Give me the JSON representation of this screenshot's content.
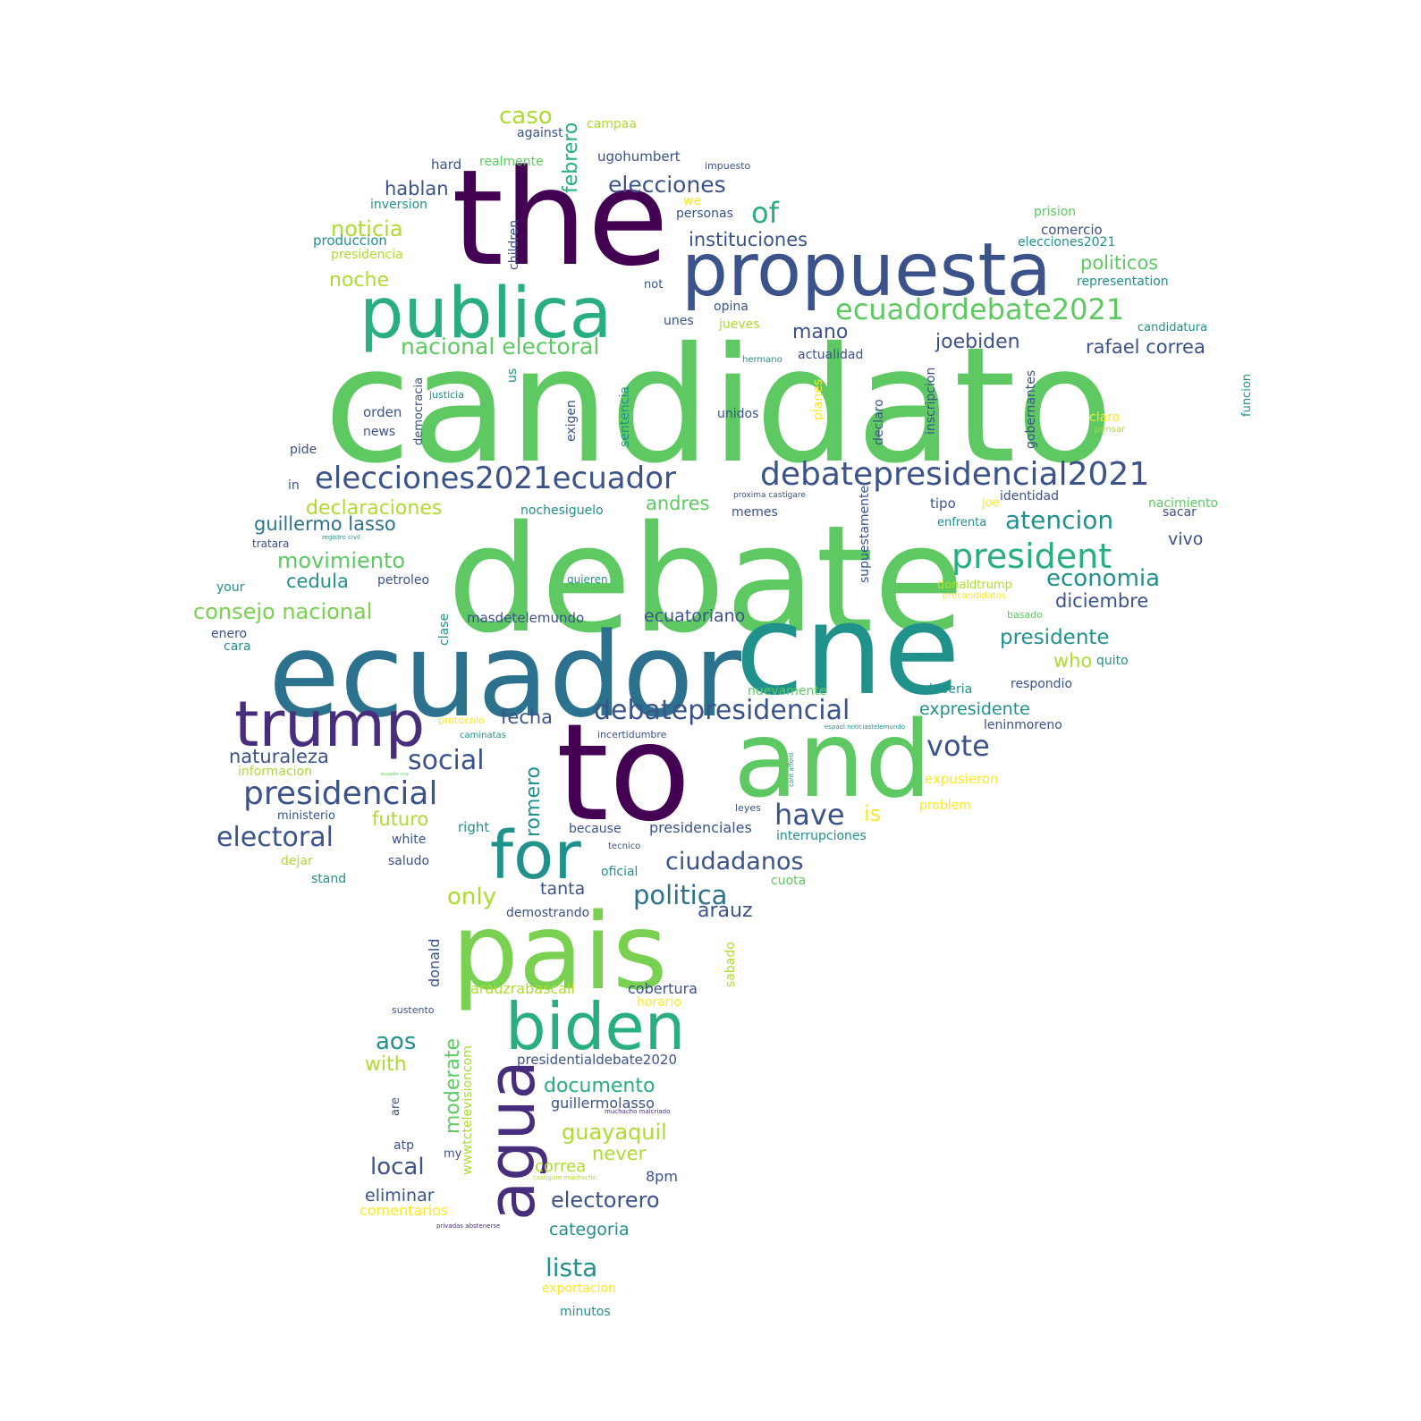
{
  "palette": {
    "viridis_dark": "#440154",
    "viridis_purple": "#472d7b",
    "viridis_indigo": "#3b528b",
    "viridis_blue": "#2c728e",
    "viridis_teal": "#21918c",
    "viridis_green": "#28ae80",
    "viridis_mint": "#5ec962",
    "viridis_lime": "#addc30",
    "viridis_yellow": "#fde725"
  },
  "words": [
    {
      "text": "candidato",
      "color": "#5ec962"
    },
    {
      "text": "debate",
      "color": "#5ec962"
    },
    {
      "text": "ecuador",
      "color": "#2c728e"
    },
    {
      "text": "the",
      "color": "#440154"
    },
    {
      "text": "cne",
      "color": "#21918c"
    },
    {
      "text": "to",
      "color": "#440154"
    },
    {
      "text": "and",
      "color": "#5ec962"
    },
    {
      "text": "propuesta",
      "color": "#3b528b"
    },
    {
      "text": "publica",
      "color": "#28ae80"
    },
    {
      "text": "pais",
      "color": "#7ad151"
    },
    {
      "text": "trump",
      "color": "#472d7b"
    },
    {
      "text": "biden",
      "color": "#28ae80"
    },
    {
      "text": "for",
      "color": "#21918c"
    },
    {
      "text": "agua",
      "color": "#472d7b"
    },
    {
      "text": "elecciones2021ecuador",
      "color": "#3b528b"
    },
    {
      "text": "debatepresidencial2021",
      "color": "#3b528b"
    },
    {
      "text": "ecuadordebate2021",
      "color": "#5ec962"
    },
    {
      "text": "president",
      "color": "#28ae80"
    },
    {
      "text": "presidencial",
      "color": "#3b528b"
    },
    {
      "text": "debatepresidencial",
      "color": "#3b528b"
    },
    {
      "text": "elecciones",
      "color": "#3b528b"
    },
    {
      "text": "of",
      "color": "#28ae80"
    },
    {
      "text": "nacional electoral",
      "color": "#5ec962"
    },
    {
      "text": "joebiden",
      "color": "#3b528b"
    },
    {
      "text": "atencion",
      "color": "#21918c"
    },
    {
      "text": "economia",
      "color": "#21918c"
    },
    {
      "text": "vote",
      "color": "#3b528b"
    },
    {
      "text": "social",
      "color": "#3b528b"
    },
    {
      "text": "electoral",
      "color": "#3b528b"
    },
    {
      "text": "have",
      "color": "#3b528b"
    },
    {
      "text": "ciudadanos",
      "color": "#3b528b"
    },
    {
      "text": "politica",
      "color": "#2c728e"
    },
    {
      "text": "consejo nacional",
      "color": "#7ad151"
    },
    {
      "text": "movimiento",
      "color": "#5ec962"
    },
    {
      "text": "instituciones",
      "color": "#3b528b"
    },
    {
      "text": "noticia",
      "color": "#addc30"
    },
    {
      "text": "hablan",
      "color": "#3b528b"
    },
    {
      "text": "caso",
      "color": "#addc30"
    },
    {
      "text": "febrero",
      "color": "#28ae80"
    },
    {
      "text": "noche",
      "color": "#addc30"
    },
    {
      "text": "mano",
      "color": "#3b528b"
    },
    {
      "text": "rafael correa",
      "color": "#3b528b"
    },
    {
      "text": "politicos",
      "color": "#5ec962"
    },
    {
      "text": "declaraciones",
      "color": "#addc30"
    },
    {
      "text": "andres",
      "color": "#5ec962"
    },
    {
      "text": "guillermo lasso",
      "color": "#2c728e"
    },
    {
      "text": "cedula",
      "color": "#21918c"
    },
    {
      "text": "presidente",
      "color": "#21918c"
    },
    {
      "text": "diciembre",
      "color": "#3b528b"
    },
    {
      "text": "ecuatoriano",
      "color": "#3b528b"
    },
    {
      "text": "fecha",
      "color": "#3b528b"
    },
    {
      "text": "naturaleza",
      "color": "#3b528b"
    },
    {
      "text": "expresidente",
      "color": "#21918c"
    },
    {
      "text": "who",
      "color": "#addc30"
    },
    {
      "text": "romero",
      "color": "#21918c"
    },
    {
      "text": "futuro",
      "color": "#addc30"
    },
    {
      "text": "is",
      "color": "#fde725"
    },
    {
      "text": "only",
      "color": "#addc30"
    },
    {
      "text": "tanta",
      "color": "#3b528b"
    },
    {
      "text": "arauz",
      "color": "#3b528b"
    },
    {
      "text": "aos",
      "color": "#21918c"
    },
    {
      "text": "with",
      "color": "#addc30"
    },
    {
      "text": "moderate",
      "color": "#5ec962"
    },
    {
      "text": "documento",
      "color": "#28ae80"
    },
    {
      "text": "guayaquil",
      "color": "#addc30"
    },
    {
      "text": "local",
      "color": "#3b528b"
    },
    {
      "text": "never",
      "color": "#addc30"
    },
    {
      "text": "electorero",
      "color": "#3b528b"
    },
    {
      "text": "eliminar",
      "color": "#3b528b"
    },
    {
      "text": "correa",
      "color": "#addc30"
    },
    {
      "text": "lista",
      "color": "#21918c"
    },
    {
      "text": "categoria",
      "color": "#21918c"
    },
    {
      "text": "vivo",
      "color": "#3b528b"
    },
    {
      "text": "presidenciales",
      "color": "#3b528b"
    },
    {
      "text": "cobertura",
      "color": "#3b528b"
    },
    {
      "text": "arauzrabascall",
      "color": "#addc30"
    },
    {
      "text": "donald",
      "color": "#3b528b"
    },
    {
      "text": "sabado",
      "color": "#addc30"
    },
    {
      "text": "guillermolasso",
      "color": "#3b528b"
    },
    {
      "text": "presidentialdebate2020",
      "color": "#3b528b"
    },
    {
      "text": "wwwtctelevisioncom",
      "color": "#addc30"
    },
    {
      "text": "8pm",
      "color": "#3b528b"
    },
    {
      "text": "comentarios",
      "color": "#fde725"
    },
    {
      "text": "exportacion",
      "color": "#fde725"
    },
    {
      "text": "minutos",
      "color": "#21918c"
    },
    {
      "text": "atp",
      "color": "#3b528b"
    },
    {
      "text": "my",
      "color": "#3b528b"
    },
    {
      "text": "are",
      "color": "#3b528b"
    },
    {
      "text": "sustento",
      "color": "#3b528b"
    },
    {
      "text": "horario",
      "color": "#fde725"
    },
    {
      "text": "muchacho malcriado",
      "color": "#472d7b"
    },
    {
      "text": "castigare muchacho",
      "color": "#addc30"
    },
    {
      "text": "privadas abstenerse",
      "color": "#472d7b"
    },
    {
      "text": "campaa",
      "color": "#addc30"
    },
    {
      "text": "against",
      "color": "#3b528b"
    },
    {
      "text": "ugohumbert",
      "color": "#3b528b"
    },
    {
      "text": "impuesto",
      "color": "#3b528b"
    },
    {
      "text": "hard",
      "color": "#3b528b"
    },
    {
      "text": "realmente",
      "color": "#5ec962"
    },
    {
      "text": "we",
      "color": "#fde725"
    },
    {
      "text": "inversion",
      "color": "#21918c"
    },
    {
      "text": "children",
      "color": "#3b528b"
    },
    {
      "text": "personas",
      "color": "#3b528b"
    },
    {
      "text": "prision",
      "color": "#5ec962"
    },
    {
      "text": "produccion",
      "color": "#21918c"
    },
    {
      "text": "comercio",
      "color": "#3b528b"
    },
    {
      "text": "elecciones2021",
      "color": "#21918c"
    },
    {
      "text": "presidencia",
      "color": "#addc30"
    },
    {
      "text": "not",
      "color": "#3b528b"
    },
    {
      "text": "representation",
      "color": "#21918c"
    },
    {
      "text": "opina",
      "color": "#3b528b"
    },
    {
      "text": "unes",
      "color": "#3b528b"
    },
    {
      "text": "jueves",
      "color": "#addc30"
    },
    {
      "text": "candidatura",
      "color": "#21918c"
    },
    {
      "text": "actualidad",
      "color": "#3b528b"
    },
    {
      "text": "hermano",
      "color": "#21918c"
    },
    {
      "text": "funcion",
      "color": "#21918c"
    },
    {
      "text": "us",
      "color": "#21918c"
    },
    {
      "text": "justicia",
      "color": "#21918c"
    },
    {
      "text": "democracia",
      "color": "#3b528b"
    },
    {
      "text": "exigen",
      "color": "#3b528b"
    },
    {
      "text": "sentencia",
      "color": "#21918c"
    },
    {
      "text": "planes",
      "color": "#fde725"
    },
    {
      "text": "declaro",
      "color": "#3b528b"
    },
    {
      "text": "inscripcion",
      "color": "#3b528b"
    },
    {
      "text": "gobernantes",
      "color": "#3b528b"
    },
    {
      "text": "orden",
      "color": "#3b528b"
    },
    {
      "text": "news",
      "color": "#3b528b"
    },
    {
      "text": "unidos",
      "color": "#3b528b"
    },
    {
      "text": "claro",
      "color": "#fde725"
    },
    {
      "text": "pensar",
      "color": "#addc30"
    },
    {
      "text": "pide",
      "color": "#3b528b"
    },
    {
      "text": "in",
      "color": "#3b528b"
    },
    {
      "text": "proxima castigare",
      "color": "#3b528b"
    },
    {
      "text": "identidad",
      "color": "#3b528b"
    },
    {
      "text": "tipo",
      "color": "#3b528b"
    },
    {
      "text": "joe",
      "color": "#fde725"
    },
    {
      "text": "nacimiento",
      "color": "#5ec962"
    },
    {
      "text": "nochesiguelo",
      "color": "#21918c"
    },
    {
      "text": "memes",
      "color": "#3b528b"
    },
    {
      "text": "supuestamente",
      "color": "#3b528b"
    },
    {
      "text": "enfrenta",
      "color": "#21918c"
    },
    {
      "text": "sacar",
      "color": "#3b528b"
    },
    {
      "text": "tratara",
      "color": "#3b528b"
    },
    {
      "text": "registro civil",
      "color": "#21918c"
    },
    {
      "text": "your",
      "color": "#21918c"
    },
    {
      "text": "petroleo",
      "color": "#3b528b"
    },
    {
      "text": "quieren",
      "color": "#21918c"
    },
    {
      "text": "donaldtrump",
      "color": "#addc30"
    },
    {
      "text": "precandidatos",
      "color": "#fde725"
    },
    {
      "text": "masdetelemundo",
      "color": "#3b528b"
    },
    {
      "text": "basado",
      "color": "#5ec962"
    },
    {
      "text": "clase",
      "color": "#21918c"
    },
    {
      "text": "enero",
      "color": "#3b528b"
    },
    {
      "text": "cara",
      "color": "#21918c"
    },
    {
      "text": "quito",
      "color": "#21918c"
    },
    {
      "text": "nuevamente",
      "color": "#5ec962"
    },
    {
      "text": "deberia",
      "color": "#21918c"
    },
    {
      "text": "respondio",
      "color": "#3b528b"
    },
    {
      "text": "protocolo",
      "color": "#fde725"
    },
    {
      "text": "caminatas",
      "color": "#21918c"
    },
    {
      "text": "incertidumbre",
      "color": "#3b528b"
    },
    {
      "text": "espaol noticiastelemundo",
      "color": "#21918c"
    },
    {
      "text": "leninmoreno",
      "color": "#3b528b"
    },
    {
      "text": "informacion",
      "color": "#addc30"
    },
    {
      "text": "ecuador cne",
      "color": "#5ec962"
    },
    {
      "text": "cant afford",
      "color": "#21918c"
    },
    {
      "text": "expusieron",
      "color": "#fde725"
    },
    {
      "text": "ministerio",
      "color": "#3b528b"
    },
    {
      "text": "leyes",
      "color": "#3b528b"
    },
    {
      "text": "problem",
      "color": "#fde725"
    },
    {
      "text": "white",
      "color": "#3b528b"
    },
    {
      "text": "right",
      "color": "#21918c"
    },
    {
      "text": "because",
      "color": "#3b528b"
    },
    {
      "text": "interrupciones",
      "color": "#21918c"
    },
    {
      "text": "dejar",
      "color": "#addc30"
    },
    {
      "text": "saludo",
      "color": "#3b528b"
    },
    {
      "text": "tecnico",
      "color": "#3b528b"
    },
    {
      "text": "oficial",
      "color": "#21918c"
    },
    {
      "text": "stand",
      "color": "#21918c"
    },
    {
      "text": "cuota",
      "color": "#5ec962"
    },
    {
      "text": "demostrando",
      "color": "#3b528b"
    }
  ]
}
